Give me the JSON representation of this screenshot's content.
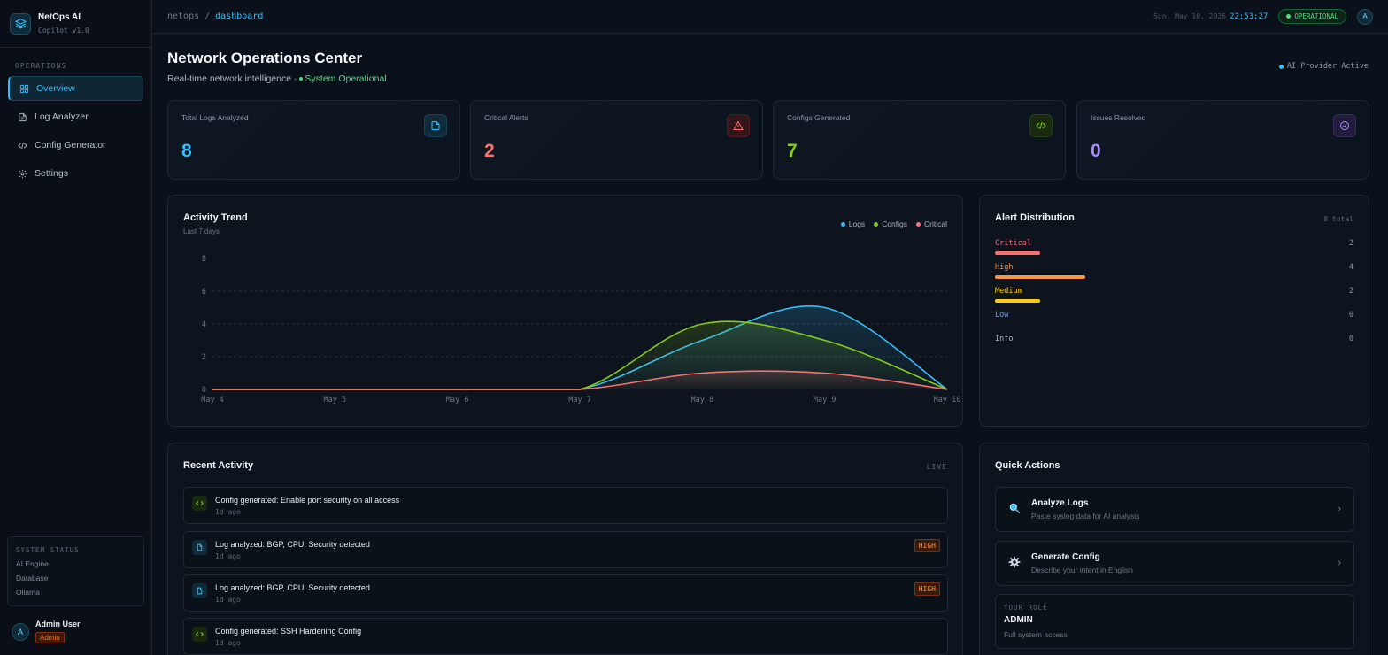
{
  "brand": {
    "name": "NetOps AI",
    "version": "Copilot v1.0"
  },
  "sidebar": {
    "section": "OPERATIONS",
    "items": [
      {
        "label": "Overview",
        "icon": "grid-icon",
        "active": true
      },
      {
        "label": "Log Analyzer",
        "icon": "file-icon",
        "active": false
      },
      {
        "label": "Config Generator",
        "icon": "code-icon",
        "active": false
      },
      {
        "label": "Settings",
        "icon": "gear-icon",
        "active": false
      }
    ],
    "system_status": {
      "title": "SYSTEM STATUS",
      "rows": [
        "AI Engine",
        "Database",
        "Ollama"
      ]
    },
    "user": {
      "initial": "A",
      "name": "Admin User",
      "role": "Admin"
    }
  },
  "topbar": {
    "crumb_root": "netops",
    "crumb_sep": "/",
    "crumb_current": "dashboard",
    "date": "Sun, May 10, 2026",
    "time": "22:53:27",
    "status": "OPERATIONAL",
    "avatar": "A"
  },
  "header": {
    "title": "Network Operations Center",
    "subtitle": "Real-time network intelligence ·",
    "status": "System Operational",
    "ai_provider": "AI Provider Active"
  },
  "stats": [
    {
      "label": "Total Logs Analyzed",
      "value": "8",
      "color": "#38bdf8",
      "icon": "document-icon"
    },
    {
      "label": "Critical Alerts",
      "value": "2",
      "color": "#f87171",
      "icon": "alert-triangle-icon"
    },
    {
      "label": "Configs Generated",
      "value": "7",
      "color": "#84cc16",
      "icon": "code-icon"
    },
    {
      "label": "Issues Resolved",
      "value": "0",
      "color": "#a78bfa",
      "icon": "check-circle-icon"
    }
  ],
  "activity_trend": {
    "title": "Activity Trend",
    "subtitle": "Last 7 days",
    "legend": [
      "Logs",
      "Configs",
      "Critical"
    ]
  },
  "chart_data": {
    "type": "area",
    "categories": [
      "May 4",
      "May 5",
      "May 6",
      "May 7",
      "May 8",
      "May 9",
      "May 10"
    ],
    "series": [
      {
        "name": "Logs",
        "values": [
          0,
          0,
          0,
          0,
          3,
          5,
          0
        ],
        "color": "#38bdf8"
      },
      {
        "name": "Configs",
        "values": [
          0,
          0,
          0,
          0,
          4,
          3,
          0
        ],
        "color": "#84cc16"
      },
      {
        "name": "Critical",
        "values": [
          0,
          0,
          0,
          0,
          1,
          1,
          0
        ],
        "color": "#f87171"
      }
    ],
    "yticks": [
      "0",
      "2",
      "4",
      "6",
      "8"
    ],
    "ylim": [
      0,
      8
    ],
    "grid": true,
    "legend_position": "top-right"
  },
  "alert_distribution": {
    "title": "Alert Distribution",
    "total": "8 total",
    "max": 8,
    "rows": [
      {
        "name": "Critical",
        "count": "2",
        "value": 2,
        "color": "#f87171"
      },
      {
        "name": "High",
        "count": "4",
        "value": 4,
        "color": "#fb923c"
      },
      {
        "name": "Medium",
        "count": "2",
        "value": 2,
        "color": "#facc15"
      },
      {
        "name": "Low",
        "count": "0",
        "value": 0,
        "color": "#60a5fa"
      },
      {
        "name": "Info",
        "count": "0",
        "value": 0,
        "color": "#aab4bf"
      }
    ]
  },
  "recent_activity": {
    "title": "Recent Activity",
    "live": "LIVE",
    "items": [
      {
        "text": "Config generated: Enable port security on all access",
        "time": "1d ago",
        "kind": "code",
        "badge": ""
      },
      {
        "text": "Log analyzed: BGP, CPU, Security detected",
        "time": "1d ago",
        "kind": "log",
        "badge": "HIGH"
      },
      {
        "text": "Log analyzed: BGP, CPU, Security detected",
        "time": "1d ago",
        "kind": "log",
        "badge": "HIGH"
      },
      {
        "text": "Config generated: SSH Hardening Config",
        "time": "1d ago",
        "kind": "code",
        "badge": ""
      }
    ]
  },
  "quick_actions": {
    "title": "Quick Actions",
    "items": [
      {
        "title": "Analyze Logs",
        "sub": "Paste syslog data for AI analysis",
        "icon": "magnifier-icon"
      },
      {
        "title": "Generate Config",
        "sub": "Describe your intent in English",
        "icon": "gear-icon"
      }
    ],
    "role": {
      "label": "YOUR ROLE",
      "value": "ADMIN",
      "desc": "Full system access"
    }
  }
}
